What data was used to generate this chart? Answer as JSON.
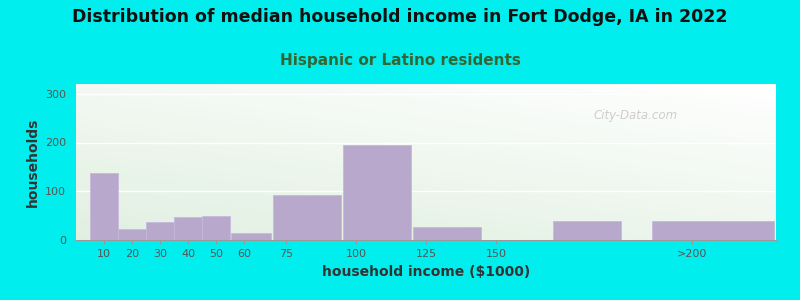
{
  "title": "Distribution of median household income in Fort Dodge, IA in 2022",
  "subtitle": "Hispanic or Latino residents",
  "xlabel": "household income ($1000)",
  "ylabel": "households",
  "background_color": "#00EEEE",
  "bar_color": "#b8a8cc",
  "bar_edgecolor": "#c8b8dc",
  "ylim": [
    0,
    320
  ],
  "yticks": [
    0,
    100,
    200,
    300
  ],
  "watermark": "City-Data.com",
  "title_fontsize": 12.5,
  "subtitle_fontsize": 11,
  "axis_label_fontsize": 10,
  "bar_data": [
    [
      5,
      10,
      138
    ],
    [
      15,
      10,
      22
    ],
    [
      25,
      10,
      37
    ],
    [
      35,
      10,
      48
    ],
    [
      45,
      10,
      50
    ],
    [
      55,
      15,
      14
    ],
    [
      70,
      25,
      93
    ],
    [
      95,
      25,
      195
    ],
    [
      120,
      25,
      26
    ],
    [
      145,
      25,
      0
    ],
    [
      170,
      25,
      38
    ],
    [
      205,
      45,
      38
    ]
  ],
  "xtick_pos": [
    10,
    20,
    30,
    40,
    50,
    60,
    75,
    100,
    125,
    150,
    220
  ],
  "xtick_labels": [
    "10",
    "20",
    "30",
    "40",
    "50",
    "60",
    "75",
    "100",
    "125",
    "150",
    ">200"
  ],
  "xlim": [
    0,
    250
  ],
  "subtitle_color": "#336633",
  "title_color": "#111111",
  "label_color": "#333333",
  "tick_color": "#555555",
  "grid_color": "#ffffff",
  "spine_color": "#999999"
}
